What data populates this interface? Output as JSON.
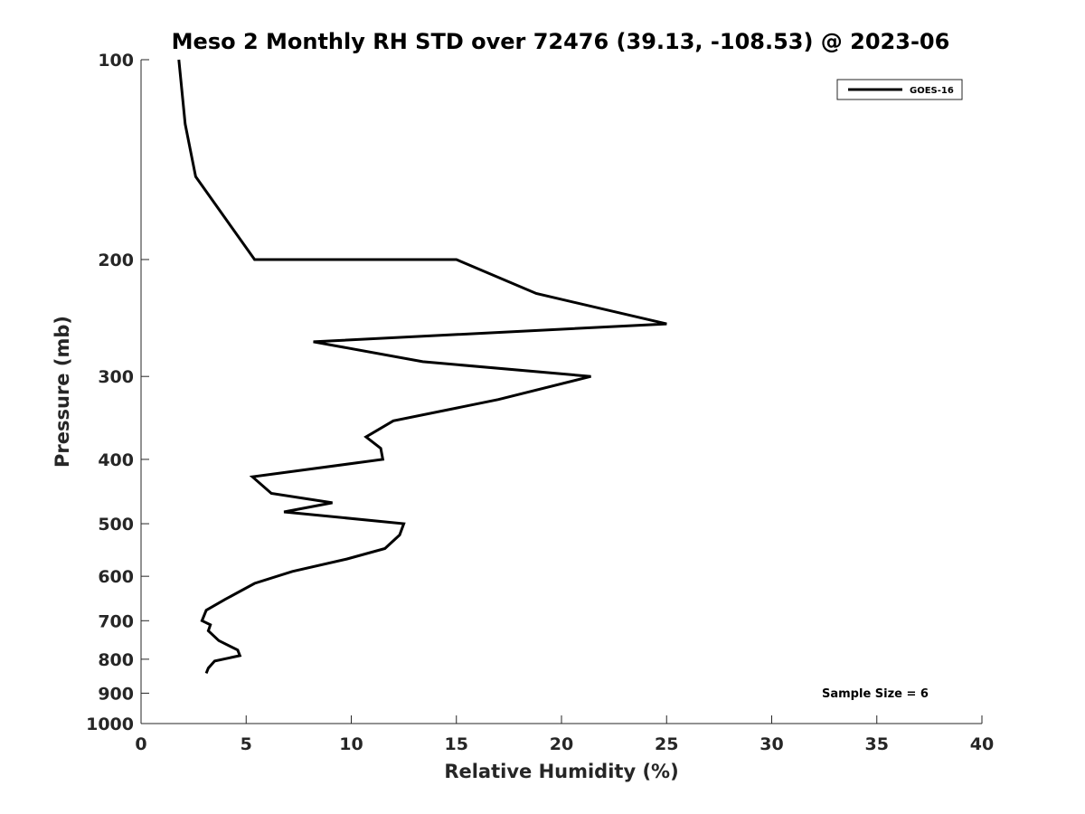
{
  "chart_data": {
    "type": "line",
    "title": "Meso 2 Monthly RH STD over 72476 (39.13, -108.53) @ 2023-06",
    "xlabel": "Relative Humidity (%)",
    "ylabel": "Pressure (mb)",
    "xlim": [
      0,
      40
    ],
    "ylim": [
      100,
      1000
    ],
    "y_scale": "log",
    "y_reversed": true,
    "x_ticks": [
      "0",
      "5",
      "10",
      "15",
      "20",
      "25",
      "30",
      "35",
      "40"
    ],
    "y_ticks": [
      "100",
      "200",
      "300",
      "400",
      "500",
      "600",
      "700",
      "800",
      "900",
      "1000"
    ],
    "legend_position": "top-right",
    "grid": false,
    "series": [
      {
        "name": "GOES-16",
        "color": "#000000",
        "points": [
          {
            "x": 1.8,
            "y": 100
          },
          {
            "x": 2.1,
            "y": 125
          },
          {
            "x": 2.6,
            "y": 150
          },
          {
            "x": 4.1,
            "y": 175
          },
          {
            "x": 5.4,
            "y": 200
          },
          {
            "x": 7.8,
            "y": 200
          },
          {
            "x": 15.0,
            "y": 200
          },
          {
            "x": 18.8,
            "y": 225
          },
          {
            "x": 25.0,
            "y": 250
          },
          {
            "x": 8.2,
            "y": 266
          },
          {
            "x": 13.4,
            "y": 285
          },
          {
            "x": 21.4,
            "y": 300
          },
          {
            "x": 17.0,
            "y": 325
          },
          {
            "x": 12.0,
            "y": 350
          },
          {
            "x": 10.7,
            "y": 370
          },
          {
            "x": 11.4,
            "y": 385
          },
          {
            "x": 11.5,
            "y": 400
          },
          {
            "x": 5.3,
            "y": 425
          },
          {
            "x": 6.2,
            "y": 450
          },
          {
            "x": 9.1,
            "y": 465
          },
          {
            "x": 6.8,
            "y": 480
          },
          {
            "x": 12.5,
            "y": 500
          },
          {
            "x": 12.3,
            "y": 520
          },
          {
            "x": 11.6,
            "y": 545
          },
          {
            "x": 9.8,
            "y": 565
          },
          {
            "x": 7.2,
            "y": 590
          },
          {
            "x": 5.4,
            "y": 615
          },
          {
            "x": 4.0,
            "y": 650
          },
          {
            "x": 3.1,
            "y": 675
          },
          {
            "x": 2.9,
            "y": 700
          },
          {
            "x": 3.3,
            "y": 710
          },
          {
            "x": 3.2,
            "y": 725
          },
          {
            "x": 3.7,
            "y": 750
          },
          {
            "x": 4.6,
            "y": 775
          },
          {
            "x": 4.7,
            "y": 790
          },
          {
            "x": 3.5,
            "y": 805
          },
          {
            "x": 3.2,
            "y": 825
          },
          {
            "x": 3.1,
            "y": 840
          }
        ]
      }
    ],
    "annotation": "Sample Size = 6"
  }
}
